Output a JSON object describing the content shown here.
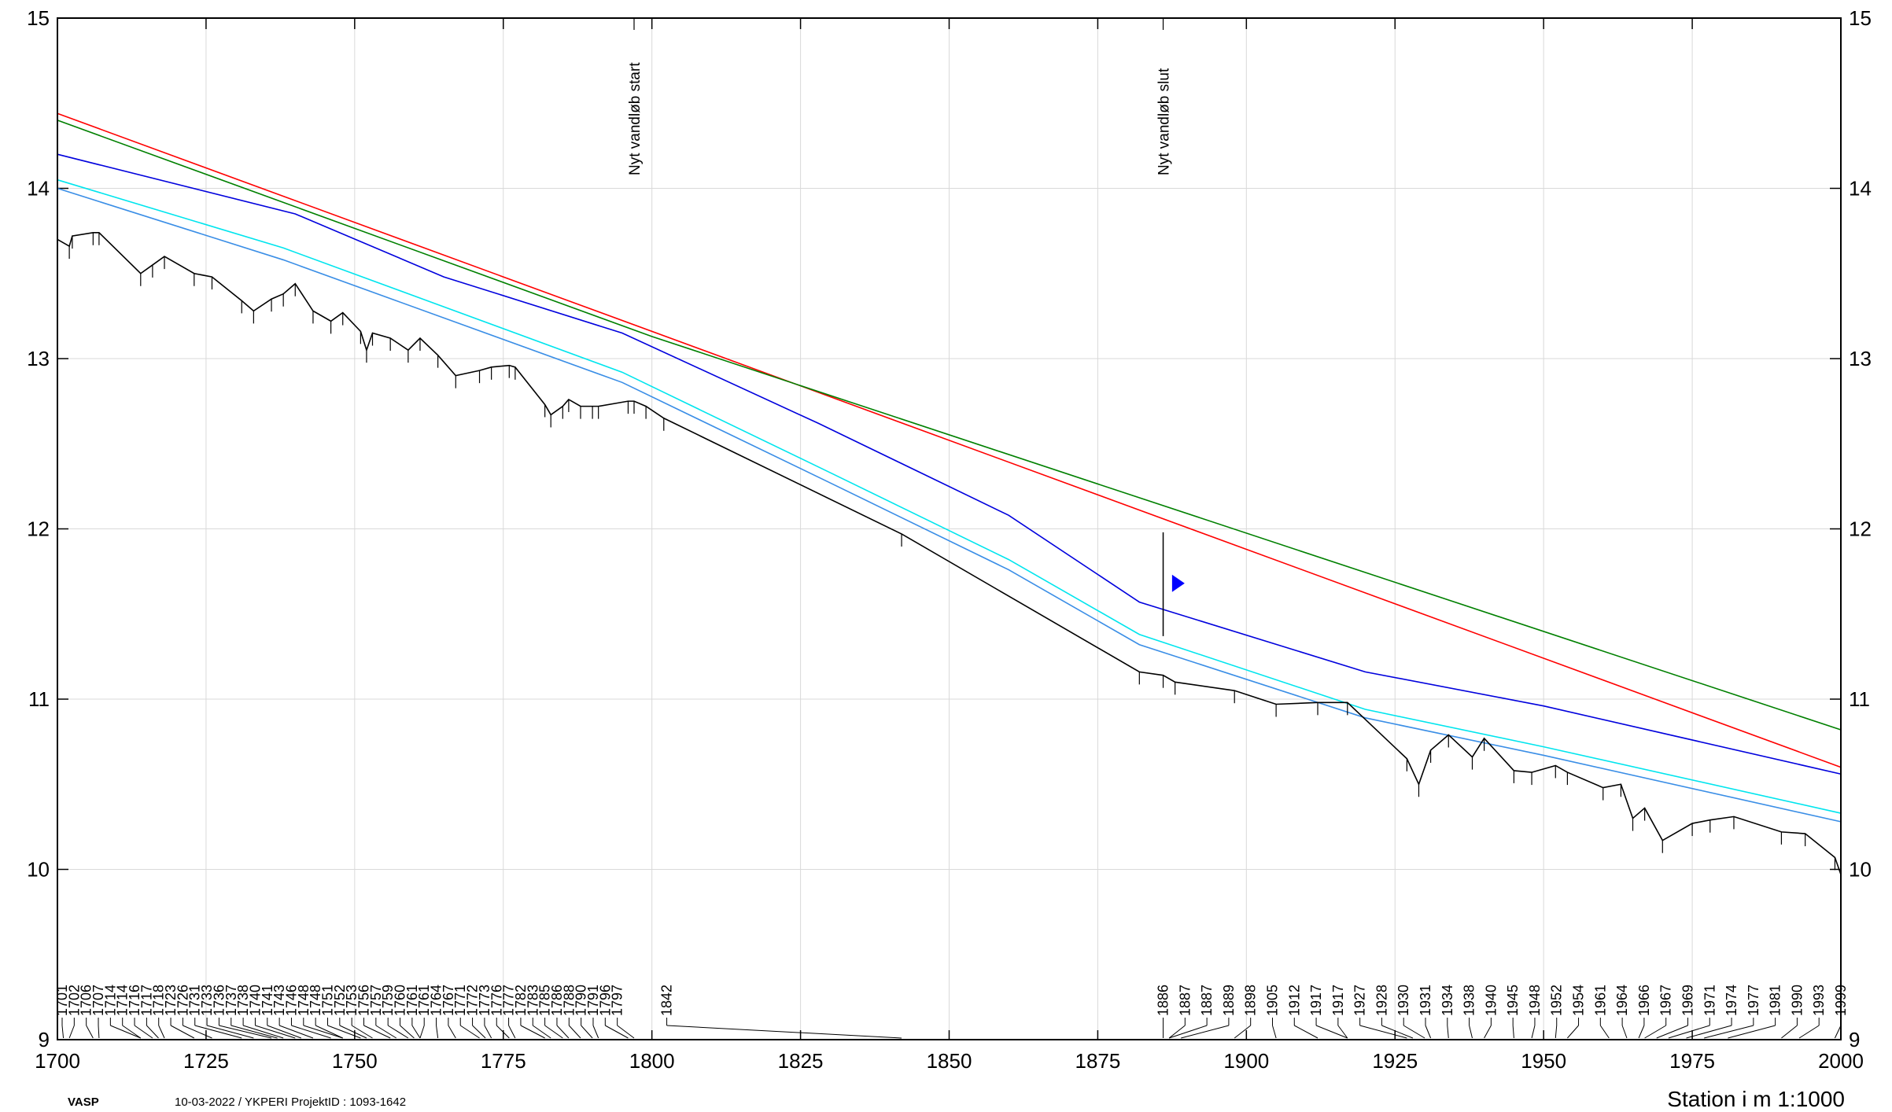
{
  "chart_data": {
    "type": "line",
    "title": "",
    "xlabel": "Station i m  1:1000",
    "ylabel": "",
    "xlim": [
      1700,
      2000
    ],
    "ylim": [
      9,
      15
    ],
    "grid": true,
    "x_ticks": [
      1700,
      1725,
      1750,
      1775,
      1800,
      1825,
      1850,
      1875,
      1900,
      1925,
      1950,
      1975,
      2000
    ],
    "y_ticks": [
      9,
      10,
      11,
      12,
      13,
      14,
      15
    ],
    "markers": [
      {
        "label": "Nyt vandløb start",
        "x": 1797
      },
      {
        "label": "Nyt vandløb slut",
        "x": 1886
      }
    ],
    "series": [
      {
        "color": "#ff0000",
        "x": [
          1700,
          2000
        ],
        "y": [
          14.44,
          10.6
        ]
      },
      {
        "color": "#008000",
        "x": [
          1700,
          1800,
          2000
        ],
        "y": [
          14.4,
          13.13,
          10.82
        ]
      },
      {
        "color": "#0000dd",
        "x": [
          1700,
          1740,
          1765,
          1795,
          1828,
          1860,
          1882,
          1920,
          1950,
          2000
        ],
        "y": [
          14.2,
          13.85,
          13.48,
          13.15,
          12.62,
          12.08,
          11.57,
          11.16,
          10.96,
          10.56
        ]
      },
      {
        "color": "#00e5ee",
        "x": [
          1700,
          1738,
          1795,
          1830,
          1860,
          1882,
          1920,
          1950,
          2000
        ],
        "y": [
          14.05,
          13.65,
          12.92,
          12.33,
          11.82,
          11.38,
          10.94,
          10.72,
          10.33
        ]
      },
      {
        "color": "#3a8ee6",
        "x": [
          1700,
          1738,
          1795,
          1830,
          1860,
          1882,
          1920,
          1950,
          2000
        ],
        "y": [
          14.0,
          13.58,
          12.86,
          12.27,
          11.76,
          11.32,
          10.89,
          10.67,
          10.28
        ]
      },
      {
        "color": "#000000",
        "x": [
          1700,
          1702,
          1702.5,
          1706,
          1707,
          1714,
          1716,
          1718,
          1723,
          1726,
          1731,
          1733,
          1736,
          1738,
          1740,
          1743,
          1746,
          1748,
          1751,
          1752,
          1753,
          1756,
          1759,
          1761,
          1764,
          1767,
          1771,
          1773,
          1776,
          1777,
          1782,
          1783,
          1785,
          1786,
          1788,
          1790,
          1791,
          1796,
          1797,
          1799,
          1802,
          1842,
          1882,
          1886,
          1888,
          1898,
          1905,
          1912,
          1917,
          1927,
          1929,
          1931,
          1934,
          1938,
          1940,
          1945,
          1948,
          1952,
          1954,
          1960,
          1963,
          1965,
          1967,
          1970,
          1975,
          1978,
          1982,
          1990,
          1994,
          1999,
          2000
        ],
        "y": [
          13.7,
          13.66,
          13.72,
          13.74,
          13.74,
          13.5,
          13.55,
          13.6,
          13.5,
          13.48,
          13.34,
          13.28,
          13.35,
          13.38,
          13.44,
          13.28,
          13.22,
          13.27,
          13.16,
          13.05,
          13.15,
          13.12,
          13.05,
          13.12,
          13.02,
          12.9,
          12.93,
          12.95,
          12.96,
          12.95,
          12.73,
          12.67,
          12.72,
          12.76,
          12.72,
          12.72,
          12.72,
          12.75,
          12.75,
          12.72,
          12.65,
          11.97,
          11.16,
          11.14,
          11.1,
          11.05,
          10.97,
          10.98,
          10.98,
          10.65,
          10.5,
          10.7,
          10.79,
          10.66,
          10.77,
          10.58,
          10.57,
          10.61,
          10.57,
          10.48,
          10.5,
          10.3,
          10.36,
          10.17,
          10.27,
          10.29,
          10.31,
          10.22,
          10.21,
          10.07,
          9.97
        ]
      },
      {
        "color": "#0000ff",
        "x": [
          1887.5
        ],
        "y": [
          11.68
        ]
      }
    ],
    "station_labels": [
      "1701",
      "1702",
      "1706",
      "1707",
      "1714",
      "1714",
      "1716",
      "1717",
      "1718",
      "1723",
      "1726",
      "1731",
      "1733",
      "1736",
      "1737",
      "1738",
      "1740",
      "1741",
      "1743",
      "1746",
      "1748",
      "1748",
      "1751",
      "1752",
      "1753",
      "1756",
      "1757",
      "1759",
      "1760",
      "1761",
      "1761",
      "1764",
      "1767",
      "1771",
      "1772",
      "1773",
      "1776",
      "1777",
      "1782",
      "1783",
      "1785",
      "1786",
      "1788",
      "1790",
      "1791",
      "1796",
      "1797",
      "1842",
      "1886",
      "1887",
      "1887",
      "1889",
      "1898",
      "1905",
      "1912",
      "1917",
      "1917",
      "1927",
      "1928",
      "1930",
      "1931",
      "1934",
      "1938",
      "1940",
      "1945",
      "1948",
      "1952",
      "1954",
      "1961",
      "1964",
      "1966",
      "1967",
      "1969",
      "1971",
      "1974",
      "1977",
      "1981",
      "1990",
      "1993",
      "1999"
    ]
  },
  "footer": {
    "app": "VASP",
    "meta": "10-03-2022 / YKPERI    ProjektID : 1093-1642",
    "scale": "Station i m  1:1000"
  }
}
